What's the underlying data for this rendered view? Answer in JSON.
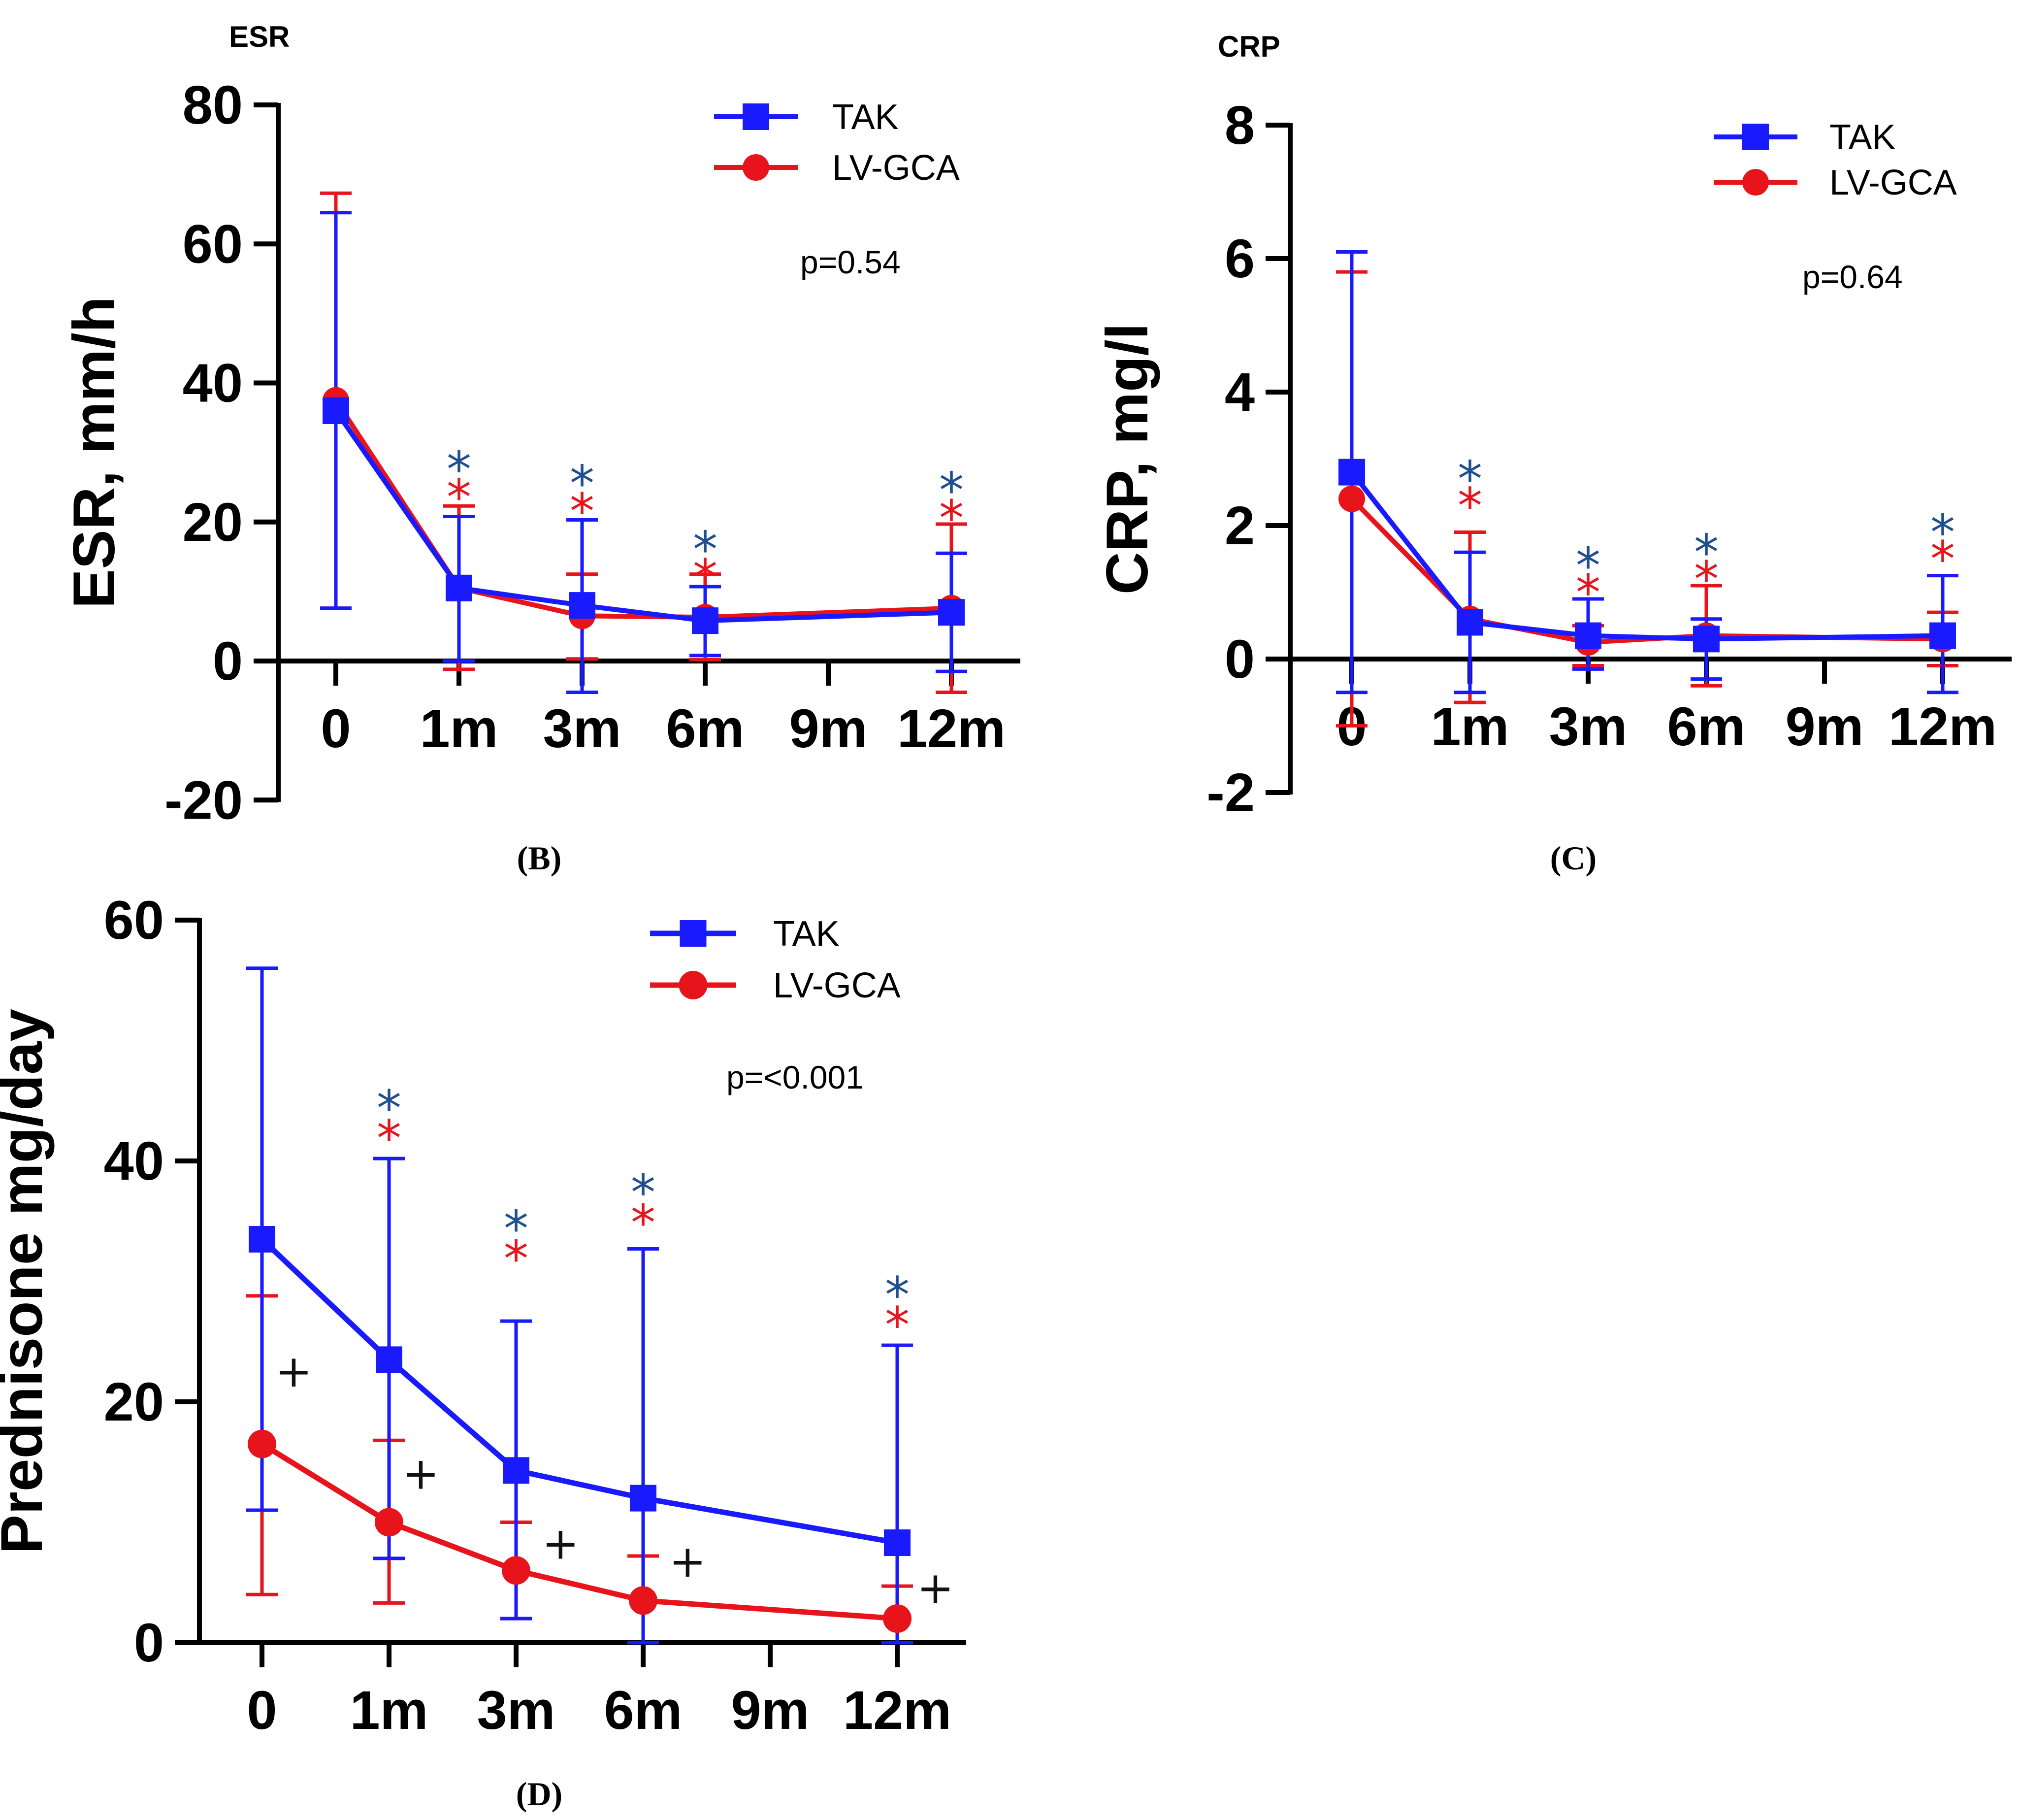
{
  "colors": {
    "tak": "#1a1aff",
    "lvgca": "#e8141c",
    "axis": "#000000",
    "star_tak": "#1f4f8f",
    "star_lvgca": "#e8141c"
  },
  "chart_data": [
    {
      "type": "line",
      "panel_title": "ESR",
      "caption": "(B)",
      "ylabel": "ESR, mm/h",
      "xlabel": "",
      "categories": [
        "0",
        "1m",
        "3m",
        "6m",
        "9m",
        "12m"
      ],
      "x_positions": [
        0,
        1,
        2,
        3,
        4,
        5
      ],
      "ylim": [
        -20,
        80
      ],
      "yticks": [
        -20,
        0,
        20,
        40,
        60,
        80
      ],
      "x_axis_at": 0,
      "legend_position": "top-right",
      "p_value": "p=0.54",
      "series": [
        {
          "name": "TAK",
          "marker": "square",
          "x": [
            0,
            1,
            2,
            3,
            5
          ],
          "values": [
            36,
            10.5,
            8,
            5.8,
            7
          ],
          "err_low": [
            7.6,
            0,
            -4.5,
            0.8,
            -1.5
          ],
          "err_high": [
            64.5,
            20.8,
            20.3,
            10.7,
            15.5
          ]
        },
        {
          "name": "LV-GCA",
          "marker": "circle",
          "x": [
            0,
            1,
            2,
            3,
            5
          ],
          "values": [
            37.5,
            10.5,
            6.5,
            6.3,
            7.6
          ],
          "err_low": [
            7.6,
            -1.2,
            0.3,
            0.2,
            -4.5
          ],
          "err_high": [
            67.3,
            22.3,
            12.5,
            12.5,
            19.7
          ]
        }
      ],
      "annotations": [
        {
          "text": "*",
          "x": 1,
          "y": 29.5,
          "series": "TAK"
        },
        {
          "text": "*",
          "x": 1,
          "y": 25.5,
          "series": "LV-GCA"
        },
        {
          "text": "*",
          "x": 2,
          "y": 27.5,
          "series": "TAK"
        },
        {
          "text": "*",
          "x": 2,
          "y": 23.5,
          "series": "LV-GCA"
        },
        {
          "text": "*",
          "x": 3,
          "y": 18,
          "series": "TAK"
        },
        {
          "text": "*",
          "x": 3,
          "y": 14,
          "series": "LV-GCA"
        },
        {
          "text": "*",
          "x": 5,
          "y": 26.5,
          "series": "TAK"
        },
        {
          "text": "*",
          "x": 5,
          "y": 22.5,
          "series": "LV-GCA"
        }
      ]
    },
    {
      "type": "line",
      "panel_title": "CRP",
      "caption": "(C)",
      "ylabel": "CRP, mg/l",
      "xlabel": "",
      "categories": [
        "0",
        "1m",
        "3m",
        "6m",
        "9m",
        "12m"
      ],
      "x_positions": [
        0,
        1,
        2,
        3,
        4,
        5
      ],
      "ylim": [
        -2,
        8
      ],
      "yticks": [
        -2,
        0,
        2,
        4,
        6,
        8
      ],
      "x_axis_at": 0,
      "legend_position": "top-right",
      "p_value": "p=0.64",
      "series": [
        {
          "name": "TAK",
          "marker": "square",
          "x": [
            0,
            1,
            2,
            3,
            5
          ],
          "values": [
            2.8,
            0.55,
            0.35,
            0.3,
            0.35
          ],
          "err_low": [
            -0.5,
            -0.5,
            -0.15,
            -0.3,
            -0.5
          ],
          "err_high": [
            6.1,
            1.6,
            0.9,
            0.6,
            1.25
          ]
        },
        {
          "name": "LV-GCA",
          "marker": "circle",
          "x": [
            0,
            1,
            2,
            3,
            5
          ],
          "values": [
            2.4,
            0.6,
            0.25,
            0.35,
            0.3
          ],
          "err_low": [
            -1.0,
            -0.65,
            -0.1,
            -0.4,
            -0.1
          ],
          "err_high": [
            5.8,
            1.9,
            0.5,
            1.1,
            0.7
          ]
        }
      ],
      "annotations": [
        {
          "text": "*",
          "x": 1,
          "y": 2.9,
          "series": "TAK"
        },
        {
          "text": "*",
          "x": 1,
          "y": 2.5,
          "series": "LV-GCA"
        },
        {
          "text": "*",
          "x": 2,
          "y": 1.6,
          "series": "TAK"
        },
        {
          "text": "*",
          "x": 2,
          "y": 1.2,
          "series": "LV-GCA"
        },
        {
          "text": "*",
          "x": 3,
          "y": 1.8,
          "series": "TAK"
        },
        {
          "text": "*",
          "x": 3,
          "y": 1.4,
          "series": "LV-GCA"
        },
        {
          "text": "*",
          "x": 5,
          "y": 2.1,
          "series": "TAK"
        },
        {
          "text": "*",
          "x": 5,
          "y": 1.7,
          "series": "LV-GCA"
        }
      ]
    },
    {
      "type": "line",
      "panel_title": "",
      "caption": "(D)",
      "ylabel": "Prednisone mg/day",
      "xlabel": "",
      "categories": [
        "0",
        "1m",
        "3m",
        "6m",
        "9m",
        "12m"
      ],
      "x_positions": [
        0,
        1,
        2,
        3,
        4,
        5
      ],
      "ylim": [
        0,
        60
      ],
      "yticks": [
        0,
        20,
        40,
        60
      ],
      "x_axis_at": 0,
      "legend_position": "top-right",
      "p_value": "p=<0.001",
      "series": [
        {
          "name": "TAK",
          "marker": "square",
          "x": [
            0,
            1,
            2,
            3,
            5
          ],
          "values": [
            33.5,
            23.5,
            14.3,
            12,
            8.3
          ],
          "err_low": [
            11,
            7,
            2,
            0,
            0
          ],
          "err_high": [
            56,
            40.2,
            26.7,
            32.7,
            24.7
          ]
        },
        {
          "name": "LV-GCA",
          "marker": "circle",
          "x": [
            0,
            1,
            2,
            3,
            5
          ],
          "values": [
            16.5,
            10,
            6,
            3.5,
            2
          ],
          "err_low": [
            4,
            3.3,
            2,
            0,
            0
          ],
          "err_high": [
            28.8,
            16.8,
            10,
            7.2,
            4.7
          ]
        }
      ],
      "annotations": [
        {
          "text": "*",
          "x": 1,
          "y": 45.5,
          "series": "TAK"
        },
        {
          "text": "*",
          "x": 1,
          "y": 43,
          "series": "LV-GCA"
        },
        {
          "text": "*",
          "x": 2,
          "y": 35.5,
          "series": "TAK"
        },
        {
          "text": "*",
          "x": 2,
          "y": 33,
          "series": "LV-GCA"
        },
        {
          "text": "*",
          "x": 3,
          "y": 38.5,
          "series": "TAK"
        },
        {
          "text": "*",
          "x": 3,
          "y": 36,
          "series": "LV-GCA"
        },
        {
          "text": "*",
          "x": 5,
          "y": 30,
          "series": "TAK"
        },
        {
          "text": "*",
          "x": 5,
          "y": 27.5,
          "series": "LV-GCA"
        },
        {
          "text": "+",
          "x": 0.25,
          "y": 22.5,
          "series": "comparison"
        },
        {
          "text": "+",
          "x": 1.25,
          "y": 14,
          "series": "comparison"
        },
        {
          "text": "+",
          "x": 2.35,
          "y": 8.2,
          "series": "comparison"
        },
        {
          "text": "+",
          "x": 3.35,
          "y": 6.7,
          "series": "comparison"
        },
        {
          "text": "+",
          "x": 5.3,
          "y": 4.5,
          "series": "comparison"
        }
      ]
    }
  ]
}
